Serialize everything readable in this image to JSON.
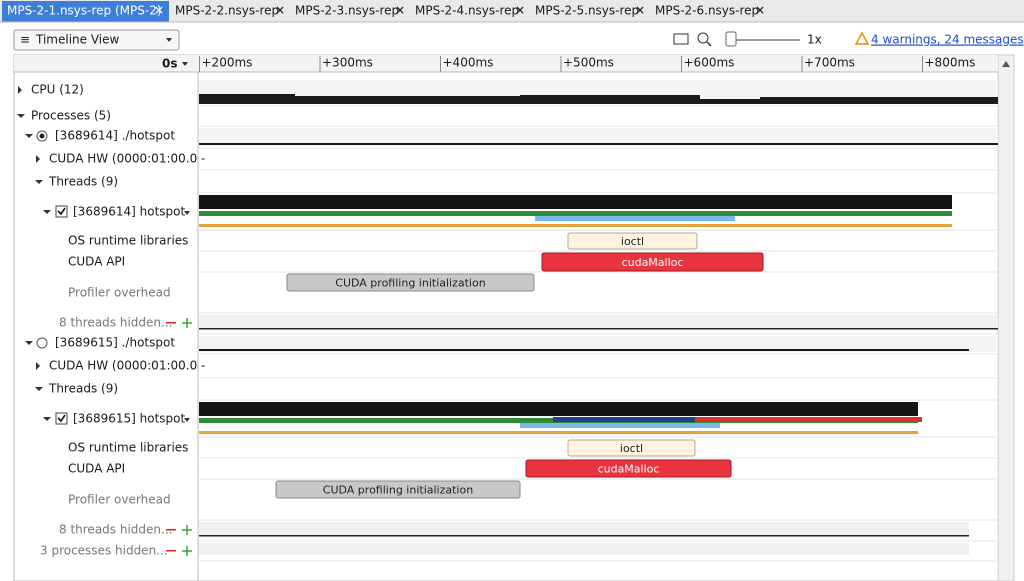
{
  "tabs": [
    "MPS-2-1.nsys-rep (MPS-2)",
    "MPS-2-2.nsys-rep",
    "MPS-2-3.nsys-rep",
    "MPS-2-4.nsys-rep",
    "MPS-2-5.nsys-rep",
    "MPS-2-6.nsys-rep"
  ],
  "toolbar": {
    "view": "Timeline View",
    "zoom": "1x",
    "warnings": "4 warnings, 24 messages"
  },
  "ruler": {
    "origin": "0s",
    "ticks": [
      "+200ms",
      "+300ms",
      "+400ms",
      "+500ms",
      "+600ms",
      "+700ms",
      "+800ms"
    ]
  },
  "tree": {
    "cpu": "CPU (12)",
    "processes": "Processes (5)",
    "process_a": {
      "name": "[3689614] ./hotspot",
      "cuda_hw": "CUDA HW (0000:01:00.0 -",
      "threads": "Threads (9)",
      "thread": "[3689614] hotspot",
      "os": "OS runtime libraries",
      "cuda_api": "CUDA API",
      "overhead": "Profiler overhead",
      "hidden": "8 threads hidden..."
    },
    "process_b": {
      "name": "[3689615] ./hotspot",
      "cuda_hw": "CUDA HW (0000:01:00.0 -",
      "threads": "Threads (9)",
      "thread": "[3689615] hotspot",
      "os": "OS runtime libraries",
      "cuda_api": "CUDA API",
      "overhead": "Profiler overhead",
      "hidden": "8 threads hidden..."
    },
    "hidden_processes": "3 processes hidden..."
  },
  "events": {
    "a_ioctl": "ioctl",
    "a_malloc": "cudaMalloc",
    "a_init": "CUDA profiling initialization",
    "b_ioctl": "ioctl",
    "b_malloc": "cudaMalloc",
    "b_init": "CUDA profiling initialization"
  }
}
